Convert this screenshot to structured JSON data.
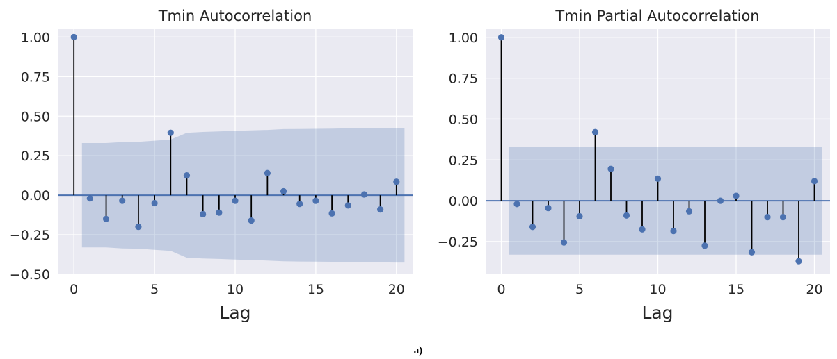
{
  "caption": "a)",
  "chart_data": [
    {
      "type": "stem",
      "title": "Tmin Autocorrelation",
      "xlabel": "Lag",
      "ylabel": "",
      "xlim": [
        -1,
        21
      ],
      "ylim": [
        -0.5,
        1.05
      ],
      "xticks": [
        0,
        5,
        10,
        15,
        20
      ],
      "yticks": [
        1.0,
        0.75,
        0.5,
        0.25,
        0.0,
        -0.25,
        -0.5
      ],
      "ytick_labels": [
        "1.00",
        "0.75",
        "0.50",
        "0.25",
        "0.00",
        "−0.25",
        "−0.50"
      ],
      "grid": true,
      "lags": [
        0,
        1,
        2,
        3,
        4,
        5,
        6,
        7,
        8,
        9,
        10,
        11,
        12,
        13,
        14,
        15,
        16,
        17,
        18,
        19,
        20
      ],
      "values": [
        1.0,
        -0.02,
        -0.15,
        -0.035,
        -0.2,
        -0.05,
        0.395,
        0.125,
        -0.12,
        -0.11,
        -0.035,
        -0.16,
        0.14,
        0.025,
        -0.055,
        -0.035,
        -0.115,
        -0.065,
        0.005,
        -0.09,
        0.085
      ],
      "confint_lags": [
        0.5,
        1,
        2,
        3,
        4,
        5,
        6,
        7,
        8,
        9,
        10,
        11,
        12,
        13,
        14,
        15,
        16,
        17,
        18,
        19,
        20,
        20.5
      ],
      "confint_upper": [
        0.33,
        0.33,
        0.33,
        0.336,
        0.338,
        0.345,
        0.352,
        0.395,
        0.4,
        0.403,
        0.407,
        0.41,
        0.413,
        0.418,
        0.419,
        0.42,
        0.421,
        0.423,
        0.424,
        0.425,
        0.426,
        0.426
      ],
      "colors": {
        "marker": "#4c72b0",
        "stem": "#000000",
        "band": "#4c72b0",
        "zero": "#4c72b0",
        "background": "#eaeaf2",
        "grid": "#ffffff"
      }
    },
    {
      "type": "stem",
      "title": "Tmin Partial Autocorrelation",
      "xlabel": "Lag",
      "ylabel": "",
      "xlim": [
        -1,
        21
      ],
      "ylim": [
        -0.45,
        1.05
      ],
      "xticks": [
        0,
        5,
        10,
        15,
        20
      ],
      "yticks": [
        1.0,
        0.75,
        0.5,
        0.25,
        0.0,
        -0.25
      ],
      "ytick_labels": [
        "1.00",
        "0.75",
        "0.50",
        "0.25",
        "0.00",
        "−0.25"
      ],
      "grid": true,
      "lags": [
        0,
        1,
        2,
        3,
        4,
        5,
        6,
        7,
        8,
        9,
        10,
        11,
        12,
        13,
        14,
        15,
        16,
        17,
        18,
        19,
        20
      ],
      "values": [
        1.0,
        -0.02,
        -0.16,
        -0.045,
        -0.255,
        -0.095,
        0.42,
        0.195,
        -0.09,
        -0.175,
        0.135,
        -0.185,
        -0.065,
        -0.275,
        0.0,
        0.03,
        -0.315,
        -0.1,
        -0.1,
        -0.37,
        0.12
      ],
      "confint_lags": [
        0.5,
        20.5
      ],
      "confint_upper": [
        0.33,
        0.33
      ],
      "colors": {
        "marker": "#4c72b0",
        "stem": "#000000",
        "band": "#4c72b0",
        "zero": "#4c72b0",
        "background": "#eaeaf2",
        "grid": "#ffffff"
      }
    }
  ]
}
